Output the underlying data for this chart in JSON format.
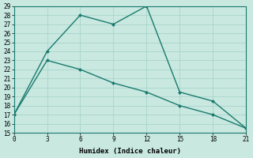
{
  "xlabel": "Humidex (Indice chaleur)",
  "line1_x": [
    0,
    3,
    6,
    9,
    12,
    15,
    18,
    21
  ],
  "line1_y": [
    17,
    24,
    28,
    27,
    29,
    19.5,
    18.5,
    15.5
  ],
  "line2_x": [
    0,
    3,
    6,
    9,
    12,
    15,
    18,
    21
  ],
  "line2_y": [
    17,
    23,
    22,
    20.5,
    19.5,
    18,
    17,
    15.5
  ],
  "line_color": "#1a7a6e",
  "bg_color": "#c8e8e0",
  "grid_color": "#aad4cc",
  "xlim": [
    0,
    21
  ],
  "ylim": [
    15,
    29
  ],
  "xticks": [
    0,
    3,
    6,
    9,
    12,
    15,
    18,
    21
  ],
  "yticks": [
    15,
    16,
    17,
    18,
    19,
    20,
    21,
    22,
    23,
    24,
    25,
    26,
    27,
    28,
    29
  ]
}
